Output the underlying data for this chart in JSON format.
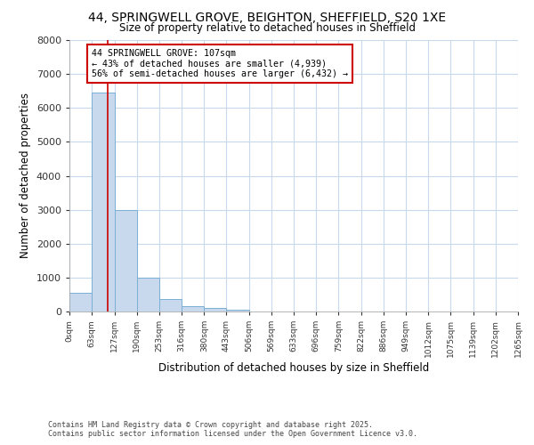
{
  "title": "44, SPRINGWELL GROVE, BEIGHTON, SHEFFIELD, S20 1XE",
  "subtitle": "Size of property relative to detached houses in Sheffield",
  "xlabel": "Distribution of detached houses by size in Sheffield",
  "ylabel": "Number of detached properties",
  "bar_values": [
    550,
    6450,
    3000,
    1000,
    370,
    160,
    100,
    55,
    0,
    0,
    0,
    0,
    0,
    0,
    0,
    0,
    0,
    0,
    0,
    0
  ],
  "bin_edges": [
    0,
    63,
    127,
    190,
    253,
    316,
    380,
    443,
    506,
    569,
    633,
    696,
    759,
    822,
    886,
    949,
    1012,
    1075,
    1139,
    1202,
    1265
  ],
  "tick_labels": [
    "0sqm",
    "63sqm",
    "127sqm",
    "190sqm",
    "253sqm",
    "316sqm",
    "380sqm",
    "443sqm",
    "506sqm",
    "569sqm",
    "633sqm",
    "696sqm",
    "759sqm",
    "822sqm",
    "886sqm",
    "949sqm",
    "1012sqm",
    "1075sqm",
    "1139sqm",
    "1202sqm",
    "1265sqm"
  ],
  "bar_color": "#c8d8ed",
  "bar_edgecolor": "#7aafd4",
  "vline_x": 107,
  "vline_color": "#cc0000",
  "annotation_text": "44 SPRINGWELL GROVE: 107sqm\n← 43% of detached houses are smaller (4,939)\n56% of semi-detached houses are larger (6,432) →",
  "annotation_boxcolor": "white",
  "annotation_edgecolor": "#cc0000",
  "ylim": [
    0,
    8000
  ],
  "yticks": [
    0,
    1000,
    2000,
    3000,
    4000,
    5000,
    6000,
    7000,
    8000
  ],
  "footer_line1": "Contains HM Land Registry data © Crown copyright and database right 2025.",
  "footer_line2": "Contains public sector information licensed under the Open Government Licence v3.0.",
  "bg_color": "#ffffff",
  "plot_bg_color": "#ffffff",
  "grid_color": "#c8d8ed"
}
